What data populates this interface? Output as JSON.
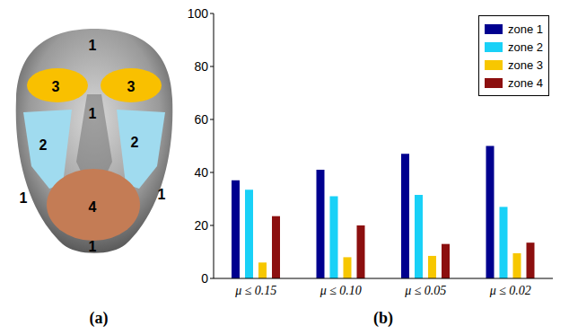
{
  "chart_data": {
    "type": "bar",
    "categories": [
      "μ ≤ 0.15",
      "μ ≤ 0.10",
      "μ ≤ 0.05",
      "μ ≤ 0.02"
    ],
    "series": [
      {
        "name": "zone 1",
        "color": "#00008f",
        "values": [
          37,
          41,
          47,
          50
        ]
      },
      {
        "name": "zone 2",
        "color": "#19d1f7",
        "values": [
          33.5,
          31,
          31.5,
          27
        ]
      },
      {
        "name": "zone 3",
        "color": "#f7c700",
        "values": [
          6,
          8,
          8.5,
          9.5
        ]
      },
      {
        "name": "zone 4",
        "color": "#8c0f0f",
        "values": [
          23.5,
          20,
          13,
          13.5
        ]
      }
    ],
    "ylim": [
      0,
      100
    ],
    "yticks": [
      0,
      20,
      40,
      60,
      80,
      100
    ],
    "grid": false,
    "legend": "top-right"
  },
  "diagram": {
    "zone_labels": [
      "1",
      "3",
      "3",
      "1",
      "2",
      "2",
      "1",
      "1",
      "4",
      "1"
    ]
  },
  "panel_labels": [
    "(a)",
    "(b)"
  ]
}
